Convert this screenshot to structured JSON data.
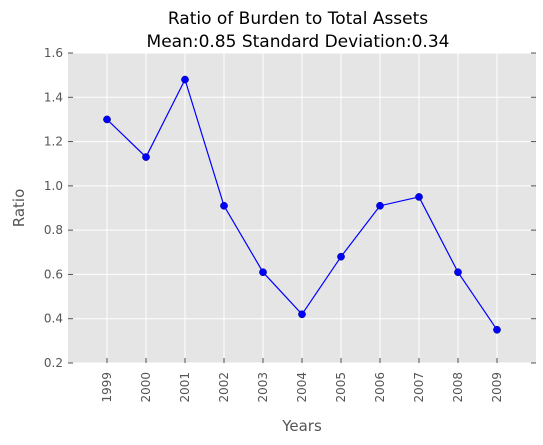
{
  "chart_data": {
    "type": "line",
    "title": "Ratio of Burden to Total Assets",
    "subtitle": "Mean:0.85 Standard Deviation:0.34",
    "xlabel": "Years",
    "ylabel": "Ratio",
    "categories": [
      "1999",
      "2000",
      "2001",
      "2002",
      "2003",
      "2004",
      "2005",
      "2006",
      "2007",
      "2008",
      "2009"
    ],
    "series": [
      {
        "values": [
          1.3,
          1.13,
          1.48,
          0.91,
          0.61,
          0.42,
          0.68,
          0.91,
          0.95,
          0.61,
          0.35
        ]
      }
    ],
    "ylim": [
      0.2,
      1.6
    ],
    "yticks": [
      "0.2",
      "0.4",
      "0.6",
      "0.8",
      "1.0",
      "1.2",
      "1.4",
      "1.6"
    ],
    "grid": true,
    "line_color": "#0000ff",
    "background_color": "#e5e5e5",
    "grid_color": "#ffffff"
  }
}
